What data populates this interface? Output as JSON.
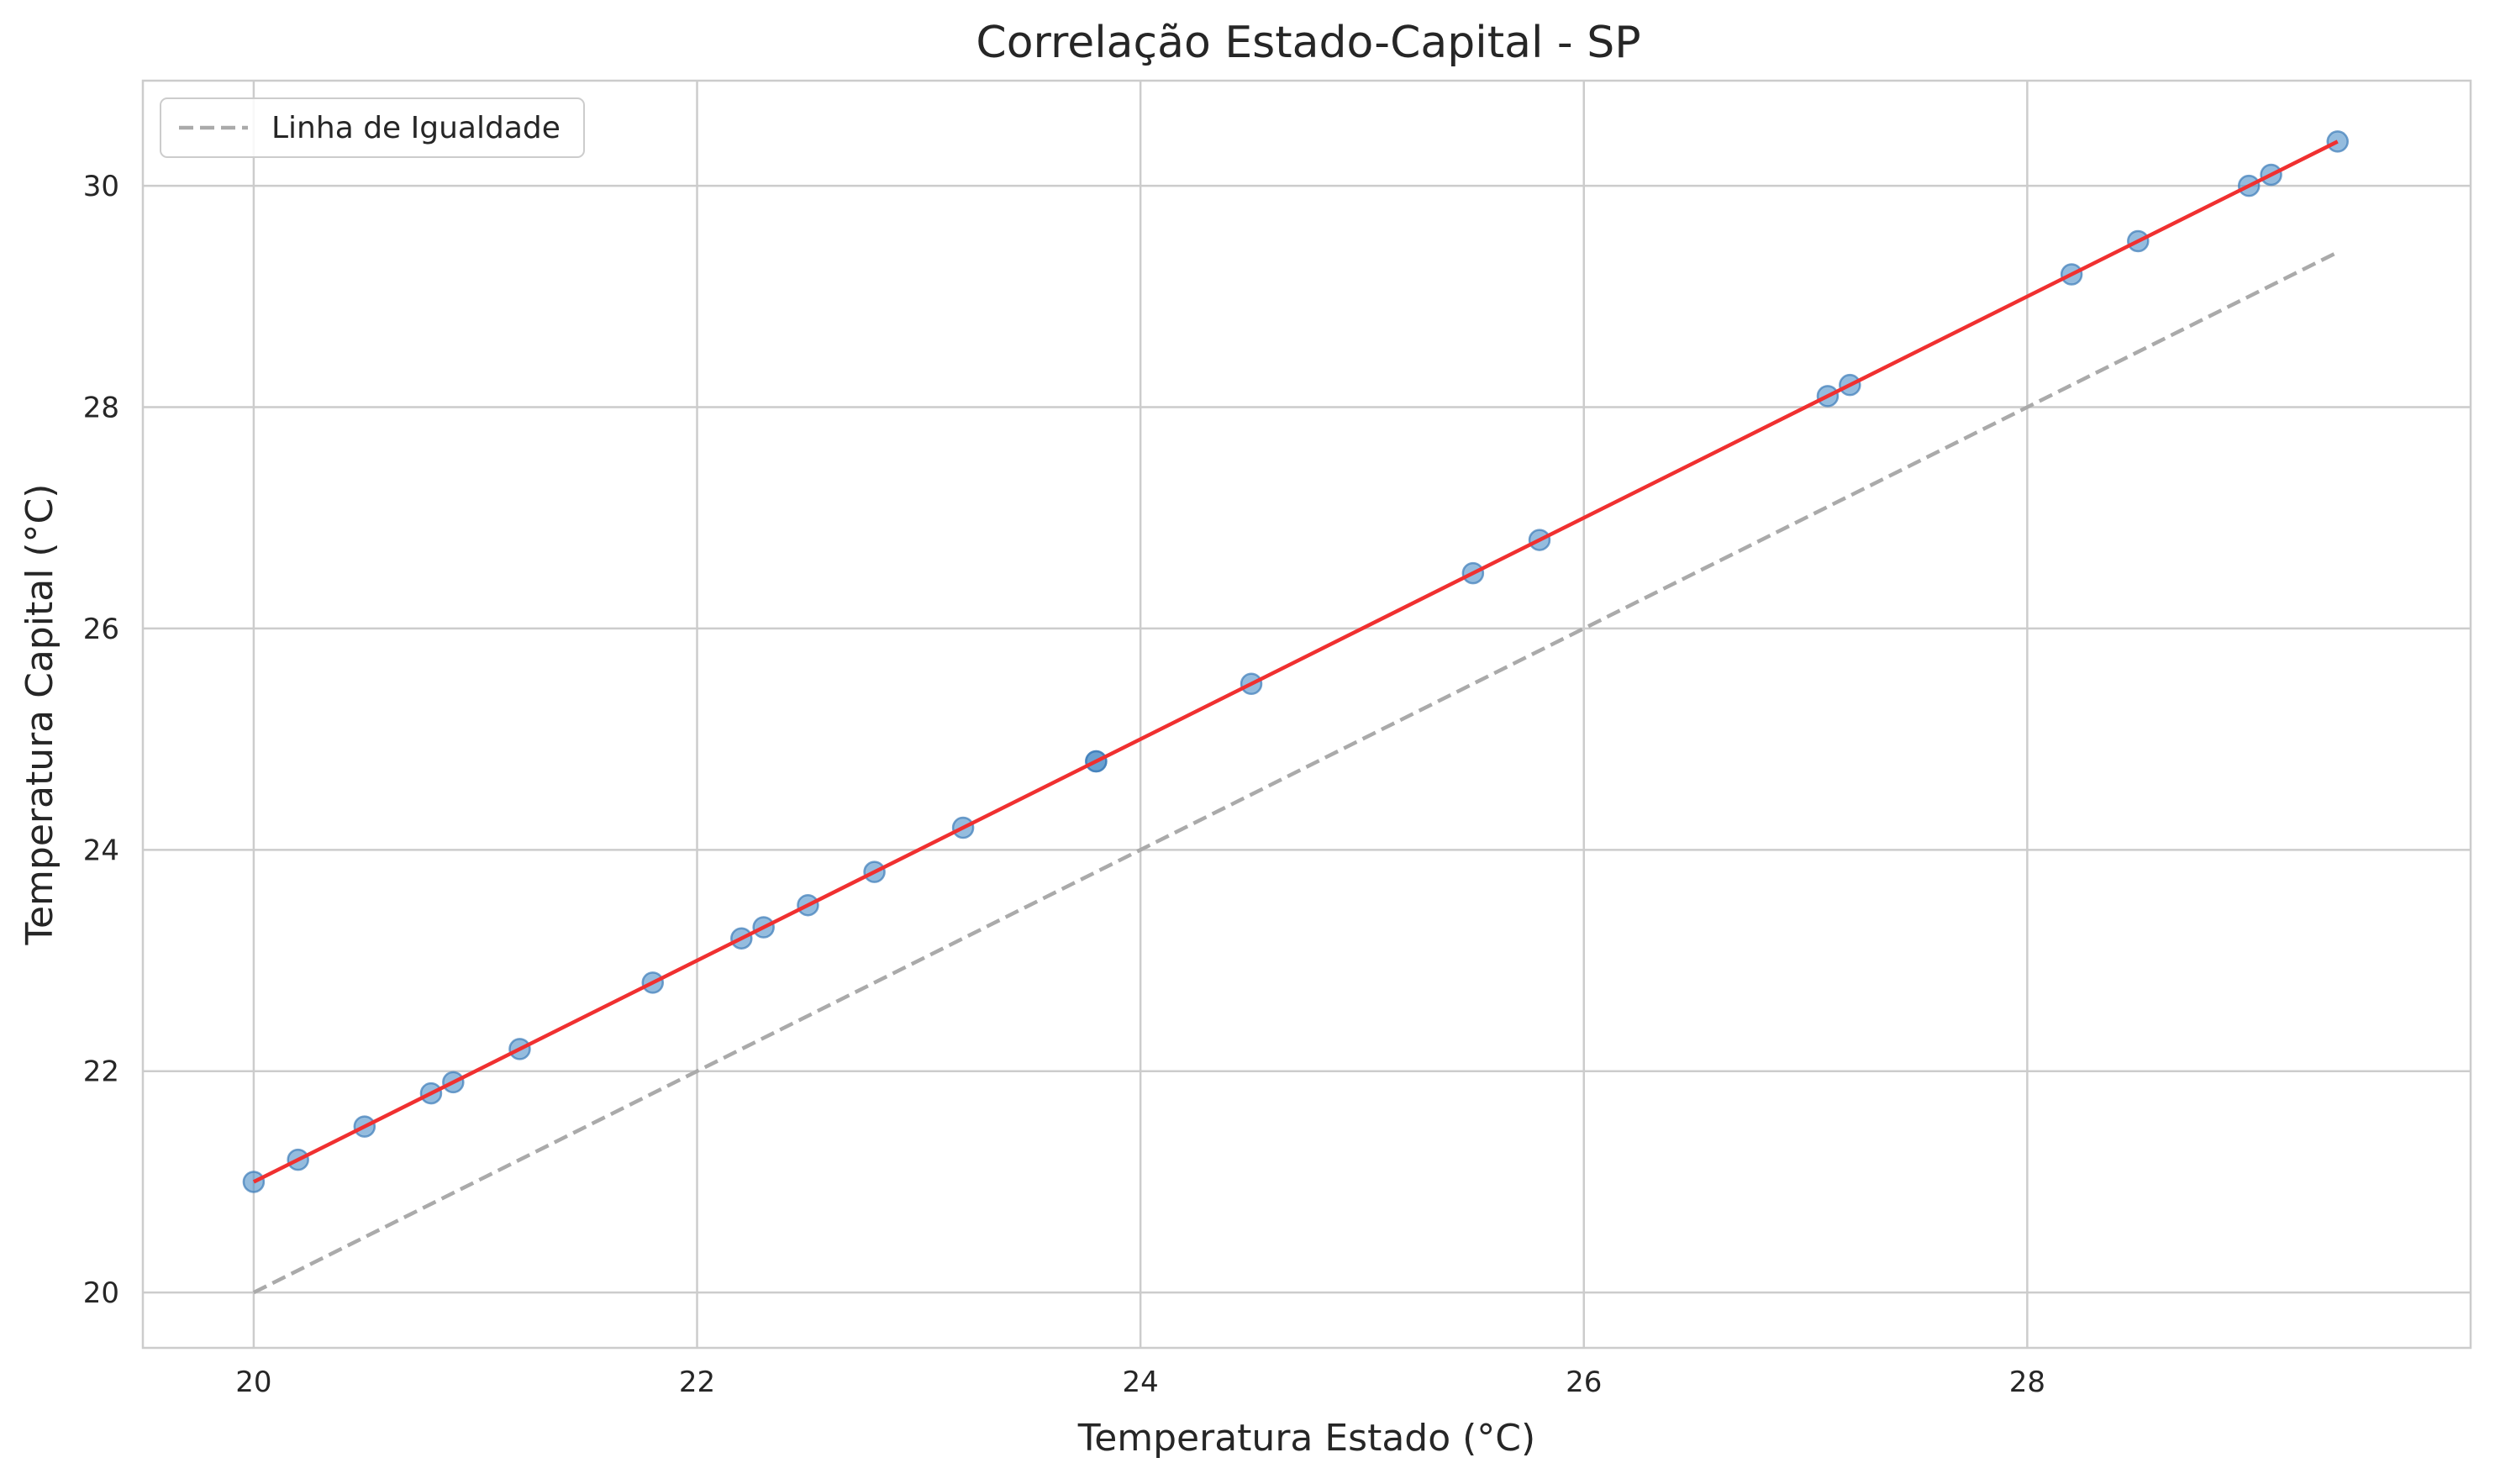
{
  "chart_data": {
    "type": "scatter",
    "title": "Correlação Estado-Capital - SP",
    "xlabel": "Temperatura Estado (°C)",
    "ylabel": "Temperatura Capital (°C)",
    "xlim": [
      19.5,
      30.0
    ],
    "ylim": [
      19.5,
      30.95
    ],
    "xticks": [
      20,
      22,
      24,
      26,
      28
    ],
    "yticks": [
      20,
      22,
      24,
      26,
      28,
      30
    ],
    "grid": true,
    "legend": {
      "position": "top-left",
      "entries": [
        "Linha de Igualdade"
      ]
    },
    "series": [
      {
        "kind": "scatter",
        "color": "#4c8fc8",
        "x": [
          20.0,
          20.2,
          20.5,
          20.8,
          20.9,
          21.2,
          21.8,
          22.2,
          22.3,
          22.5,
          22.8,
          23.2,
          23.8,
          23.8,
          24.5,
          25.5,
          25.8,
          27.1,
          27.2,
          28.2,
          28.5,
          29.0,
          29.1,
          29.4
        ],
        "y": [
          21.0,
          21.2,
          21.5,
          21.8,
          21.9,
          22.2,
          22.8,
          23.2,
          23.3,
          23.5,
          23.8,
          24.2,
          24.8,
          24.8,
          25.5,
          26.5,
          26.8,
          28.1,
          28.2,
          29.2,
          29.5,
          30.0,
          30.1,
          30.4
        ]
      },
      {
        "kind": "line",
        "style": "solid",
        "color": "#f03030",
        "x": [
          20.0,
          29.4
        ],
        "y": [
          21.0,
          30.4
        ]
      },
      {
        "kind": "line",
        "style": "dashed",
        "name": "Linha de Igualdade",
        "color": "#aaaaaa",
        "x": [
          20.0,
          29.4
        ],
        "y": [
          20.0,
          29.4
        ]
      }
    ]
  }
}
